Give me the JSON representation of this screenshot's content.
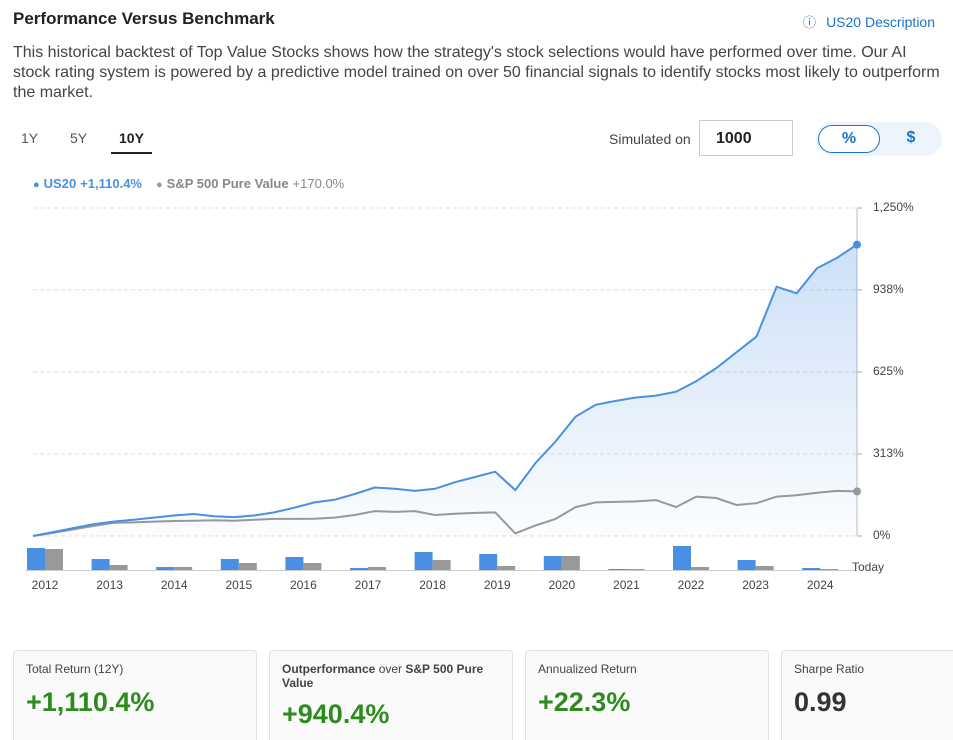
{
  "header": {
    "title": "Performance Versus Benchmark",
    "link": "US20 Description"
  },
  "description": "This historical backtest of Top Value Stocks shows how the strategy's stock selections would have performed over time. Our AI stock rating system is powered by a predictive model trained on over 50 financial signals to identify stocks most likely to outperform the market.",
  "tabs": [
    "1Y",
    "5Y",
    "10Y"
  ],
  "active_tab": 2,
  "simulated": {
    "label": "Simulated on",
    "value": 1000
  },
  "toggle": [
    "%",
    "$"
  ],
  "active_toggle": 0,
  "chart_data": [
    {
      "type": "line",
      "series": [
        {
          "name": "US20",
          "color": "#4a90e2",
          "return": {
            "value": 1110.4,
            "label": "+1,110.4%"
          },
          "values": [
            0,
            15,
            30,
            45,
            55,
            62,
            70,
            78,
            84,
            75,
            72,
            78,
            90,
            108,
            128,
            138,
            160,
            185,
            180,
            172,
            180,
            205,
            225,
            245,
            175,
            278,
            360,
            455,
            500,
            515,
            528,
            535,
            550,
            590,
            640,
            700,
            760,
            950,
            925,
            1020,
            1060,
            1110.4
          ]
        },
        {
          "name": "S&P 500 Pure Value",
          "color": "#999999",
          "return": {
            "value": 170.0,
            "label": "+170.0%"
          },
          "values": [
            0,
            12,
            25,
            38,
            50,
            52,
            55,
            57,
            58,
            60,
            58,
            62,
            65,
            65,
            66,
            70,
            80,
            95,
            92,
            95,
            80,
            85,
            88,
            90,
            10,
            40,
            65,
            110,
            128,
            130,
            132,
            137,
            110,
            150,
            145,
            118,
            125,
            150,
            155,
            165,
            172,
            170
          ]
        }
      ],
      "ylim": [
        0,
        1250
      ],
      "yticks": [
        {
          "value": 0,
          "label": "0%"
        },
        {
          "value": 313,
          "label": "313%"
        },
        {
          "value": 625,
          "label": "625%"
        },
        {
          "value": 938,
          "label": "938%"
        },
        {
          "value": 1250,
          "label": "1,250%"
        }
      ],
      "grid": true
    },
    {
      "type": "bar",
      "categories": [
        "2012",
        "2013",
        "2014",
        "2015",
        "2016",
        "2017",
        "2018",
        "2019",
        "2020",
        "2021",
        "2022",
        "2023",
        "2024"
      ],
      "end_label": "Today",
      "series": [
        {
          "name": "US20",
          "color": "#4a90e2",
          "values": [
            44,
            22,
            6,
            22,
            26,
            4,
            36,
            32,
            28,
            2,
            48,
            20,
            4
          ]
        },
        {
          "name": "S&P 500 Pure Value",
          "color": "#999999",
          "values": [
            42,
            10,
            6,
            14,
            14,
            6,
            20,
            8,
            28,
            2,
            6,
            8,
            2
          ]
        }
      ],
      "ylim": [
        0,
        50
      ]
    }
  ],
  "stats": [
    {
      "label": "Total Return (12Y)",
      "value": "+1,110.4%",
      "color": "#2e8b1e"
    },
    {
      "label_parts": [
        "Outperformance",
        " over ",
        "S&P 500 Pure Value"
      ],
      "value": "+940.4%",
      "color": "#2e8b1e"
    },
    {
      "label": "Annualized Return",
      "value": "+22.3%",
      "color": "#2e8b1e"
    },
    {
      "label": "Sharpe Ratio",
      "value": "0.99",
      "color": "#333333"
    }
  ]
}
